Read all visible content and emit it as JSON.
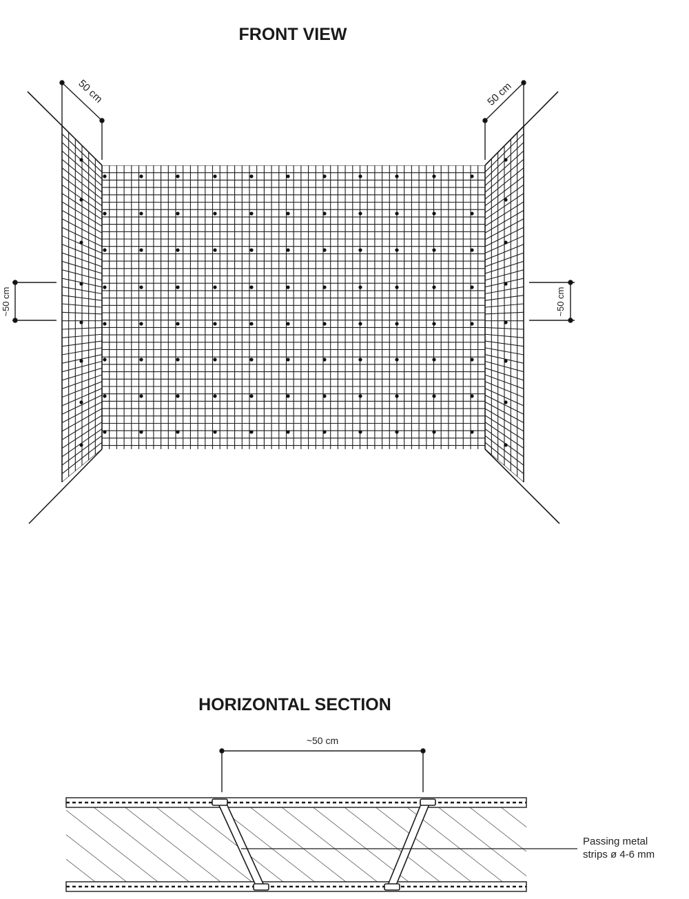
{
  "front_view": {
    "title": "FRONT VIEW",
    "dim_top_left": "50 cm",
    "dim_top_right": "50 cm",
    "dim_side_left": "~50 cm",
    "dim_side_right": "~50 cm"
  },
  "horizontal_section": {
    "title": "HORIZONTAL SECTION",
    "dim_top": "~50 cm",
    "note_line1": "Passing metal",
    "note_line2": "strips ø 4-6 mm"
  },
  "colors": {
    "ink": "#1a1a1a",
    "background": "#ffffff"
  }
}
